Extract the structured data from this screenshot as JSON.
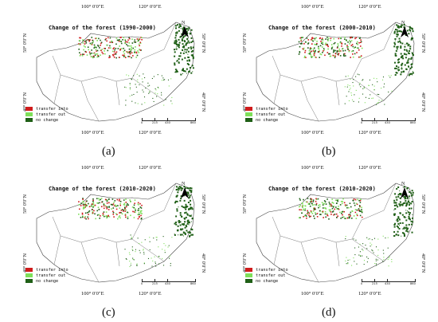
{
  "axes": {
    "lon_left": "100° 0′0″E",
    "lon_right": "120° 0′0″E",
    "lat_50": "50° 0′0″N",
    "lat_40": "40° 0′0″N"
  },
  "legend": {
    "items": [
      {
        "label": "transfer into",
        "color": "#d01c1c"
      },
      {
        "label": "transfer out",
        "color": "#7ee05a"
      },
      {
        "label": "no change",
        "color": "#1f5f16"
      }
    ]
  },
  "scale_bar": {
    "ticks": [
      "0",
      "215",
      "430",
      "860"
    ]
  },
  "north_arrow": "N",
  "panels": [
    {
      "title": "Change of the forest (1990-2000)",
      "caption": "(a)"
    },
    {
      "title": "Change of the forest (2000-2010)",
      "caption": "(b)"
    },
    {
      "title": "Change of the forest (2010-2020)",
      "caption": "(c)"
    },
    {
      "title": "Change of the forest (2010-2020)",
      "caption": "(d)"
    }
  ]
}
